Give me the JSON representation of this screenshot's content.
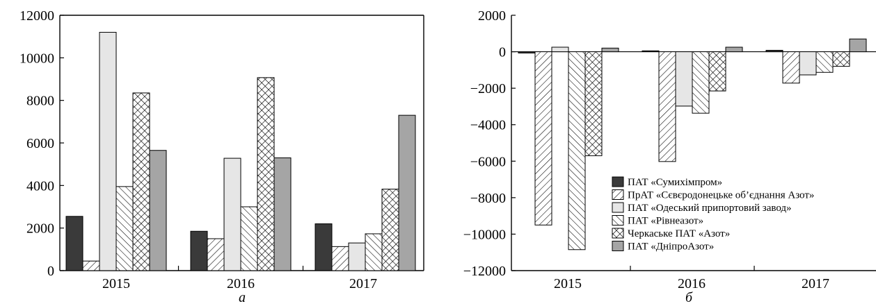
{
  "colors": {
    "company1": "#3a3a3a",
    "company3": "#e6e6e6",
    "company6": "#a5a5a5",
    "stroke": "#000000"
  },
  "chart_data": [
    {
      "type": "bar",
      "panel_label": "а",
      "categories": [
        "2015",
        "2016",
        "2017"
      ],
      "ylim": [
        0,
        12000
      ],
      "yticks": [
        0,
        2000,
        4000,
        6000,
        8000,
        10000,
        12000
      ],
      "grid": false,
      "legend": "none",
      "series": [
        {
          "values": [
            2550,
            1850,
            2200
          ],
          "pattern": "solid-dark"
        },
        {
          "values": [
            450,
            1500,
            1130
          ],
          "pattern": "back-hatch"
        },
        {
          "values": [
            11200,
            5280,
            1300
          ],
          "pattern": "solid-light"
        },
        {
          "values": [
            3950,
            3000,
            1730
          ],
          "pattern": "forward-hatch"
        },
        {
          "values": [
            8350,
            9070,
            3830
          ],
          "pattern": "crosshatch"
        },
        {
          "values": [
            5650,
            5300,
            7300
          ],
          "pattern": "solid-gray"
        }
      ]
    },
    {
      "type": "bar",
      "panel_label": "б",
      "categories": [
        "2015",
        "2016",
        "2017"
      ],
      "ylim": [
        -12000,
        2000
      ],
      "yticks": [
        -12000,
        -10000,
        -8000,
        -6000,
        -4000,
        -2000,
        0,
        2000
      ],
      "grid": false,
      "legend": "center-right",
      "series": [
        {
          "name": "ПАТ «Сумихімпром»",
          "values": [
            -70,
            50,
            80
          ],
          "pattern": "solid-dark"
        },
        {
          "name": "ПрАТ «Сєвєродонецьке об’єднання Азот»",
          "values": [
            -9500,
            -6020,
            -1720
          ],
          "pattern": "back-hatch"
        },
        {
          "name": "ПАТ «Одеський припортовий завод»",
          "values": [
            250,
            -2980,
            -1270
          ],
          "pattern": "solid-light"
        },
        {
          "name": "ПАТ «Рівнеазот»",
          "values": [
            -10850,
            -3370,
            -1130
          ],
          "pattern": "forward-hatch"
        },
        {
          "name": "Черкаське ПАТ «Азот»",
          "values": [
            -5700,
            -2150,
            -800
          ],
          "pattern": "crosshatch"
        },
        {
          "name": "ПАТ «ДніпроАзот»",
          "values": [
            200,
            250,
            700
          ],
          "pattern": "solid-gray"
        }
      ]
    }
  ]
}
